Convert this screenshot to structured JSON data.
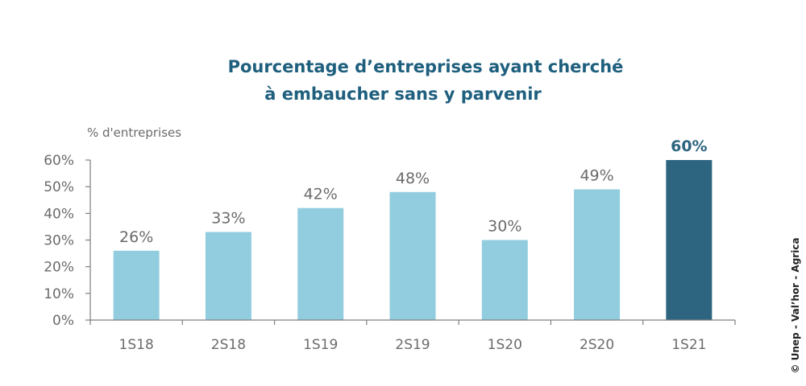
{
  "chart_data": {
    "type": "bar",
    "title_line1": "Pourcentage d’entreprises ayant cherché",
    "title_line2": "à embaucher sans y parvenir",
    "ylabel": "% d'entreprises",
    "xlabel": "",
    "categories": [
      "1S18",
      "2S18",
      "1S19",
      "2S19",
      "1S20",
      "2S20",
      "1S21"
    ],
    "values": [
      26,
      33,
      42,
      48,
      30,
      49,
      60
    ],
    "data_labels": [
      "26%",
      "33%",
      "42%",
      "48%",
      "30%",
      "49%",
      "60%"
    ],
    "highlight_index": 6,
    "ylim": [
      0,
      60
    ],
    "yticks": [
      0,
      10,
      20,
      30,
      40,
      50,
      60
    ],
    "ytick_labels": [
      "0%",
      "10%",
      "20%",
      "30%",
      "40%",
      "50%",
      "60%"
    ],
    "grid": false,
    "legend": "none",
    "colors": {
      "bar": "#92cddf",
      "highlight": "#2d6480",
      "axis": "#7f7f7f",
      "title": "#1f5f7e"
    }
  },
  "credit": "© Unep - Val’hor - Agrica"
}
